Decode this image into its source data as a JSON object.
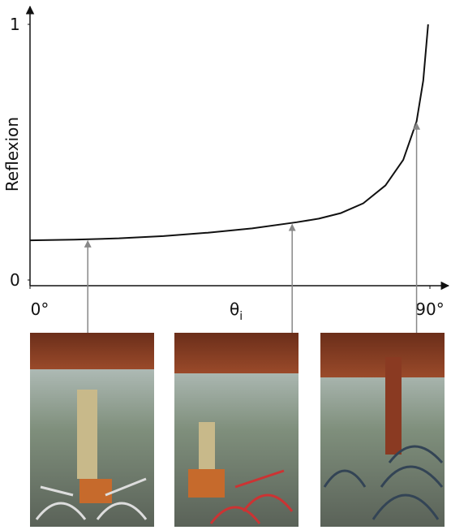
{
  "chart_data": {
    "type": "line",
    "ylabel": "Reflexion",
    "xlabel": "θ",
    "xlabel_sub": "i",
    "x": [
      0,
      10,
      20,
      30,
      40,
      50,
      60,
      65,
      70,
      75,
      80,
      84,
      87,
      88.5,
      89.6
    ],
    "series": [
      {
        "color": "#111111",
        "values": [
          0.155,
          0.158,
          0.163,
          0.172,
          0.185,
          0.202,
          0.226,
          0.24,
          0.262,
          0.3,
          0.37,
          0.47,
          0.62,
          0.78,
          1.0
        ]
      }
    ],
    "markers": [
      13,
      59,
      87
    ],
    "marker_color": "#888888",
    "xlim": [
      0,
      90
    ],
    "ylim": [
      0,
      1
    ],
    "xticks": [
      {
        "value": 0,
        "label": "0°"
      },
      {
        "value": 90,
        "label": "90°"
      }
    ],
    "yticks": [
      0,
      1
    ]
  }
}
